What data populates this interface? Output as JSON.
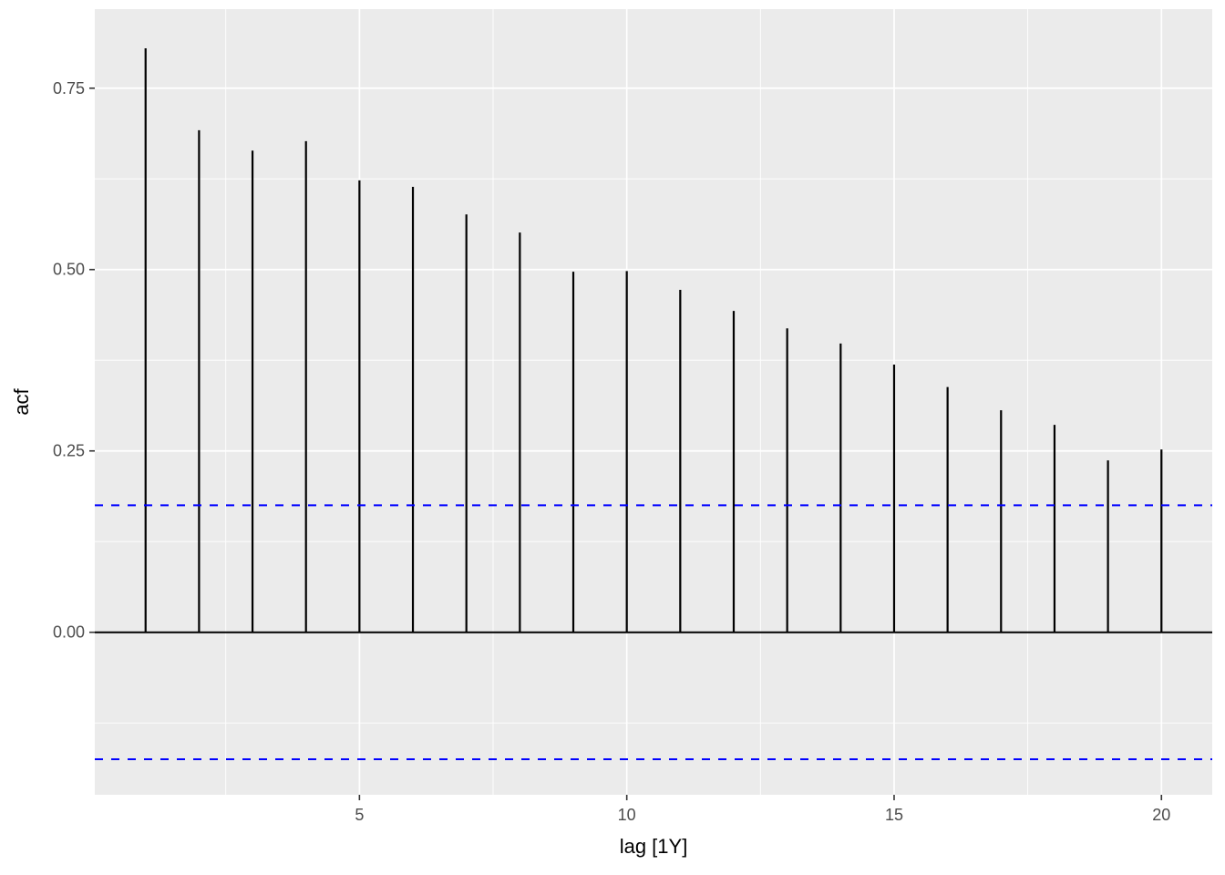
{
  "figure": {
    "background_color": "#FFFFFF"
  },
  "chart_data": {
    "type": "bar",
    "subtype": "autocorrelation-spike-plot",
    "title": "",
    "xlabel": "lag [1Y]",
    "ylabel": "acf",
    "x": [
      1,
      2,
      3,
      4,
      5,
      6,
      7,
      8,
      9,
      10,
      11,
      12,
      13,
      14,
      15,
      16,
      17,
      18,
      19,
      20
    ],
    "values": [
      0.805,
      0.692,
      0.664,
      0.677,
      0.623,
      0.614,
      0.576,
      0.551,
      0.497,
      0.498,
      0.472,
      0.443,
      0.419,
      0.398,
      0.369,
      0.338,
      0.306,
      0.286,
      0.237,
      0.252
    ],
    "zero_line": 0,
    "confidence_bounds": [
      0.175,
      -0.175
    ],
    "confidence_line_style": "dashed",
    "xlim": [
      0.05,
      20.95
    ],
    "ylim": [
      -0.224,
      0.859
    ],
    "x_ticks": [
      {
        "v": 5,
        "label": "5"
      },
      {
        "v": 10,
        "label": "10"
      },
      {
        "v": 15,
        "label": "15"
      },
      {
        "v": 20,
        "label": "20"
      }
    ],
    "y_ticks": [
      {
        "v": 0,
        "label": "0.00"
      },
      {
        "v": 0.25,
        "label": "0.25"
      },
      {
        "v": 0.5,
        "label": "0.50"
      },
      {
        "v": 0.75,
        "label": "0.75"
      }
    ],
    "x_minor_gridlines": [
      2.5,
      7.5,
      12.5,
      17.5
    ],
    "y_minor_gridlines": [
      -0.125,
      0.125,
      0.375,
      0.625
    ],
    "grid": true,
    "legend": "none",
    "colors": {
      "spike": "#000000",
      "zero_line": "#000000",
      "confidence_line": "#0000FF",
      "panel_bg": "#EBEBEB",
      "grid": "#FFFFFF",
      "tick_mark": "#333333",
      "tick_label": "#4D4D4D",
      "axis_title": "#000000"
    }
  }
}
